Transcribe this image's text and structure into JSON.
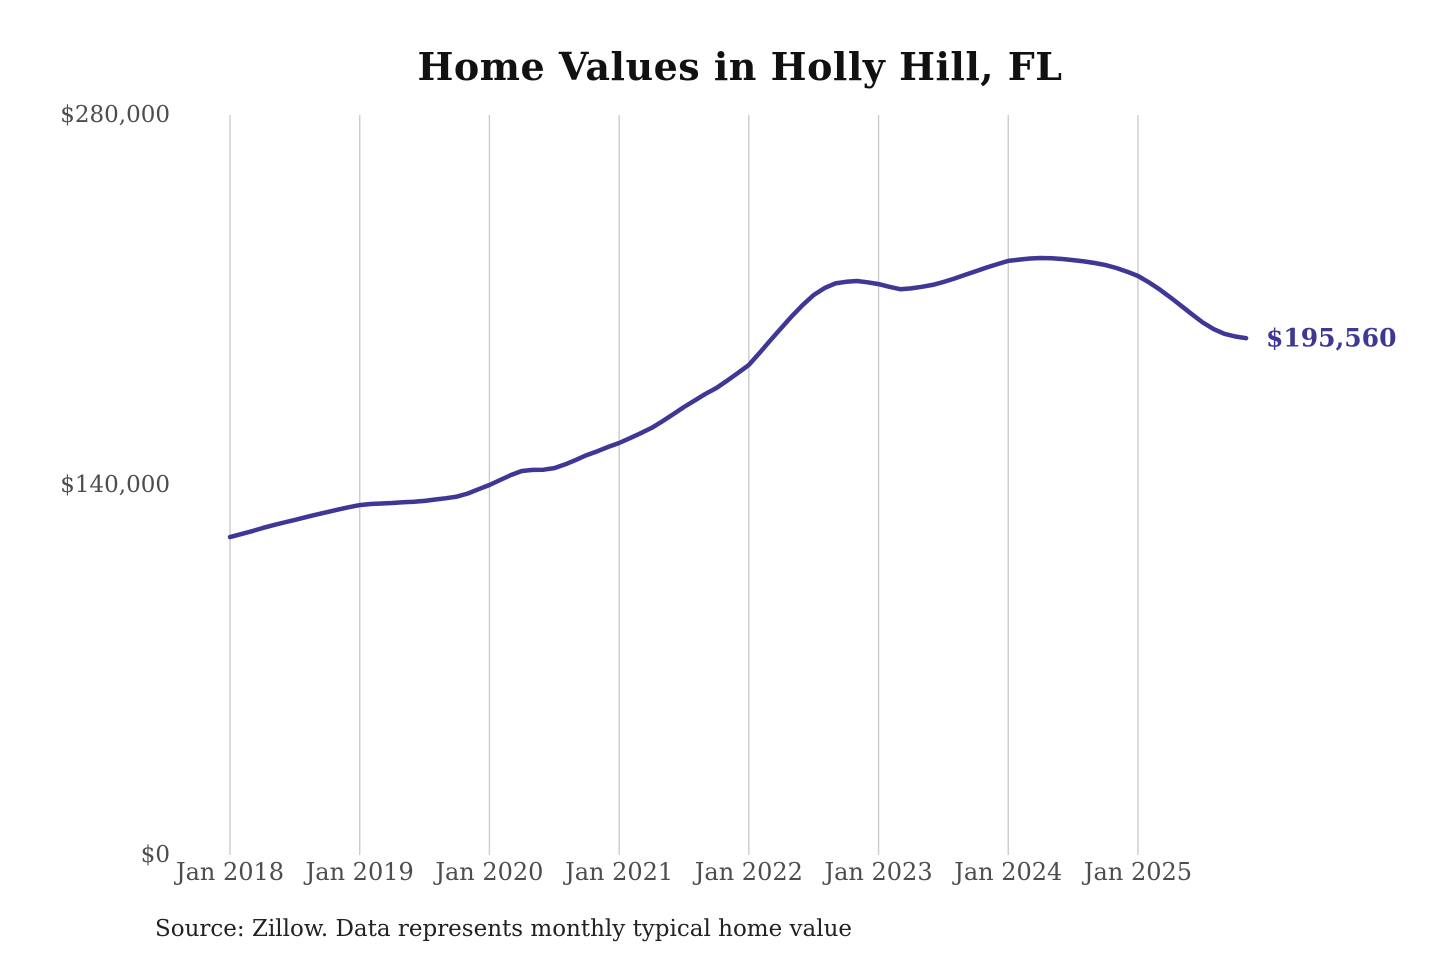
{
  "chart_data": {
    "type": "line",
    "title": "Home Values in Holly Hill, FL",
    "source_note": "Source: Zillow. Data represents monthly typical home value",
    "end_annotation": "$195,560",
    "latest_value": 195560,
    "xlabel": "",
    "ylabel": "",
    "ylim": [
      0,
      280000
    ],
    "y_tick_values": [
      0,
      140000,
      280000
    ],
    "y_tick_labels": [
      "$0",
      "$140,000",
      "$280,000"
    ],
    "x_tick_labels": [
      "Jan 2018",
      "Jan 2019",
      "Jan 2020",
      "Jan 2021",
      "Jan 2022",
      "Jan 2023",
      "Jan 2024",
      "Jan 2025"
    ],
    "x_start": "2018-01",
    "x_interval": "1 month",
    "x_end": "2025-11",
    "grid": "vertical-only",
    "legend": "none",
    "line_color": "#3f3795",
    "gridline_color": "#cccccc",
    "axis_label_color": "#4d4d4d",
    "series": [
      {
        "name": "Typical home value ($)",
        "values": [
          120300,
          121400,
          122500,
          123700,
          124800,
          125800,
          126800,
          127800,
          128800,
          129800,
          130700,
          131600,
          132400,
          132800,
          133000,
          133200,
          133500,
          133700,
          134000,
          134500,
          135000,
          135600,
          136800,
          138400,
          140000,
          141900,
          143800,
          145300,
          145700,
          145800,
          146400,
          147800,
          149500,
          151300,
          152800,
          154400,
          155900,
          157700,
          159600,
          161600,
          164100,
          166800,
          169500,
          172000,
          174500,
          176700,
          179500,
          182400,
          185400,
          190000,
          194800,
          199400,
          204000,
          208200,
          211900,
          214500,
          216300,
          216900,
          217200,
          216700,
          216000,
          215000,
          214100,
          214400,
          215000,
          215700,
          216800,
          218100,
          219500,
          220900,
          222300,
          223600,
          224800,
          225300,
          225700,
          225900,
          225800,
          225500,
          225100,
          224600,
          224000,
          223200,
          222100,
          220700,
          219100,
          216700,
          214000,
          211000,
          207800,
          204600,
          201500,
          199000,
          197200,
          196200,
          195560
        ]
      }
    ]
  }
}
